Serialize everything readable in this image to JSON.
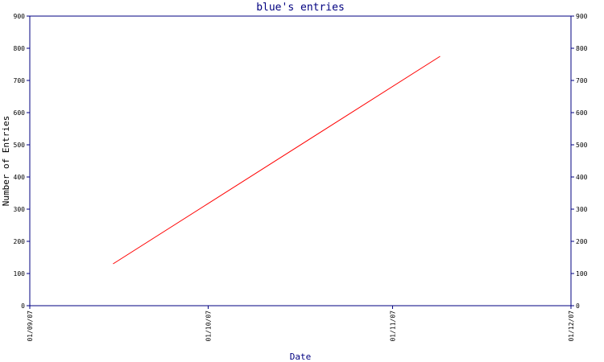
{
  "chart_data": {
    "type": "line",
    "title": "blue's entries",
    "xlabel": "Date",
    "ylabel": "Number of Entries",
    "x_ticks": [
      "01/09/07",
      "01/10/07",
      "01/11/07",
      "01/12/07"
    ],
    "x_tick_dates": [
      "2007-09-01",
      "2007-10-01",
      "2007-11-01",
      "2007-12-01"
    ],
    "xlim": [
      "2007-09-01",
      "2007-12-01"
    ],
    "ylim": [
      0,
      900
    ],
    "y_ticks": [
      0,
      100,
      200,
      300,
      400,
      500,
      600,
      700,
      800,
      900
    ],
    "grid": false,
    "legend": "none",
    "series": [
      {
        "color": "#ff0000",
        "points": [
          {
            "x": "2007-09-15",
            "y": 130
          },
          {
            "x": "2007-11-09",
            "y": 775
          }
        ]
      }
    ]
  },
  "colors": {
    "axis": "#000080",
    "text": "#000080",
    "background": "#ffffff"
  }
}
